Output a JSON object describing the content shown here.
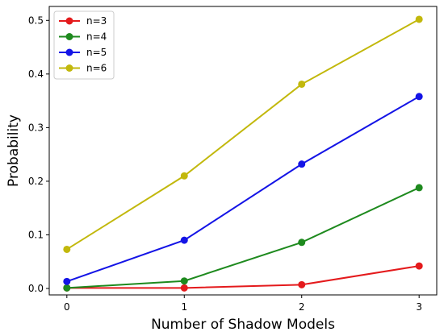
{
  "chart_data": {
    "type": "line",
    "xlabel": "Number of Shadow Models",
    "ylabel": "Probability",
    "x": [
      0,
      1,
      2,
      3
    ],
    "xlim": [
      -0.15,
      3.15
    ],
    "ylim": [
      -0.012,
      0.526
    ],
    "xticks": [
      0,
      1,
      2,
      3
    ],
    "yticks": [
      0.0,
      0.1,
      0.2,
      0.3,
      0.4,
      0.5
    ],
    "ytick_labels": [
      "0.0",
      "0.1",
      "0.2",
      "0.3",
      "0.4",
      "0.5"
    ],
    "grid": false,
    "legend_position": "top-left",
    "series": [
      {
        "name": "n=3",
        "color": "#e41a1c",
        "values": [
          0.001,
          0.001,
          0.007,
          0.042
        ]
      },
      {
        "name": "n=4",
        "color": "#1e8a1e",
        "values": [
          0.001,
          0.014,
          0.086,
          0.188
        ]
      },
      {
        "name": "n=5",
        "color": "#1414e6",
        "values": [
          0.013,
          0.09,
          0.232,
          0.358
        ]
      },
      {
        "name": "n=6",
        "color": "#c2b80c",
        "values": [
          0.073,
          0.21,
          0.381,
          0.502
        ]
      }
    ]
  }
}
